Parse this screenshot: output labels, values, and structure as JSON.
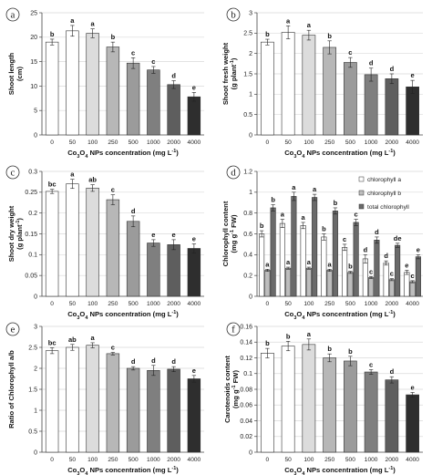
{
  "palette": {
    "bar_fill": [
      "#ffffff",
      "#ffffff",
      "#dcdcdc",
      "#b7b7b7",
      "#9b9b9b",
      "#7f7f7f",
      "#5e5e5e",
      "#2e2e2e"
    ],
    "grid": "#d9d9d9",
    "axis": "#444444",
    "chlorophyll": [
      "#ffffff",
      "#bdbdbd",
      "#6a6a6a"
    ]
  },
  "chart_data": [
    {
      "panel": "a",
      "type": "bar",
      "categories": [
        "0",
        "50",
        "100",
        "250",
        "500",
        "1000",
        "2000",
        "4000"
      ],
      "values": [
        19.0,
        21.3,
        20.8,
        18.0,
        14.7,
        13.3,
        10.3,
        7.8
      ],
      "errors": [
        0.6,
        1.1,
        0.9,
        1.0,
        1.1,
        0.7,
        0.8,
        0.9
      ],
      "sig": [
        "b",
        "a",
        "a",
        "b",
        "c",
        "c",
        "d",
        "e"
      ],
      "ylabel": "Shoot length\n(cm)",
      "xlabel": "Co3O4 NPs concentration (mg L-1)",
      "ylim": [
        0,
        25
      ],
      "yticks": [
        "0",
        "5",
        "10",
        "15",
        "20",
        "25"
      ],
      "ytick_values": [
        0,
        5,
        10,
        15,
        20,
        25
      ]
    },
    {
      "panel": "b",
      "type": "bar",
      "categories": [
        "0",
        "50",
        "100",
        "250",
        "500",
        "1000",
        "2000",
        "4000"
      ],
      "values": [
        2.28,
        2.52,
        2.45,
        2.15,
        1.78,
        1.48,
        1.38,
        1.18
      ],
      "errors": [
        0.07,
        0.16,
        0.12,
        0.16,
        0.12,
        0.16,
        0.12,
        0.16
      ],
      "sig": [
        "b",
        "a",
        "a",
        "b",
        "c",
        "d",
        "d",
        "e"
      ],
      "ylabel": "Shoot fresh weight\n(g plant-1)",
      "xlabel": "Co3O4 NPs concentration (mg L-1)",
      "ylim": [
        0,
        3
      ],
      "yticks": [
        "0",
        "0.5",
        "1",
        "1.5",
        "2",
        "2.5",
        "3"
      ],
      "ytick_values": [
        0,
        0.5,
        1,
        1.5,
        2,
        2.5,
        3
      ]
    },
    {
      "panel": "c",
      "type": "bar",
      "categories": [
        "0",
        "50",
        "100",
        "250",
        "500",
        "1000",
        "2000",
        "4000"
      ],
      "values": [
        0.252,
        0.27,
        0.26,
        0.232,
        0.18,
        0.128,
        0.124,
        0.115
      ],
      "errors": [
        0.005,
        0.011,
        0.008,
        0.012,
        0.013,
        0.008,
        0.012,
        0.011
      ],
      "sig": [
        "bc",
        "a",
        "ab",
        "c",
        "d",
        "e",
        "e",
        "e"
      ],
      "ylabel": "Shoot dry weight\n(g plant-1)",
      "xlabel": "Co3O4 NPs concentration (mg L-1)",
      "ylim": [
        0,
        0.3
      ],
      "yticks": [
        "0",
        "0.05",
        "0.1",
        "0.15",
        "0.2",
        "0.25",
        "0.3"
      ],
      "ytick_values": [
        0,
        0.05,
        0.1,
        0.15,
        0.2,
        0.25,
        0.3
      ]
    },
    {
      "panel": "d",
      "type": "bar",
      "categories": [
        "0",
        "50",
        "100",
        "250",
        "500",
        "1000",
        "2000",
        "4000"
      ],
      "series": [
        {
          "name": "chlorophyll a",
          "values": [
            0.6,
            0.7,
            0.68,
            0.57,
            0.47,
            0.36,
            0.32,
            0.23
          ],
          "errors": [
            0.03,
            0.04,
            0.03,
            0.03,
            0.03,
            0.04,
            0.02,
            0.02
          ],
          "sig": [
            "b",
            "a",
            "a",
            "b",
            "c",
            "d",
            "d",
            "e"
          ]
        },
        {
          "name": "chlorophyll b",
          "values": [
            0.25,
            0.27,
            0.27,
            0.25,
            0.23,
            0.18,
            0.16,
            0.14
          ],
          "errors": [
            0.01,
            0.01,
            0.01,
            0.01,
            0.01,
            0.01,
            0.01,
            0.01
          ],
          "sig": [
            "a",
            "a",
            "a",
            "a",
            "b",
            "c",
            "c",
            "c"
          ]
        },
        {
          "name": "total chlorophyll",
          "values": [
            0.85,
            0.96,
            0.95,
            0.82,
            0.71,
            0.54,
            0.49,
            0.38
          ],
          "errors": [
            0.03,
            0.04,
            0.03,
            0.03,
            0.03,
            0.03,
            0.02,
            0.02
          ],
          "sig": [
            "b",
            "a",
            "a",
            "b",
            "c",
            "d",
            "de",
            "e"
          ]
        }
      ],
      "ylabel": "Chlorophyll content\n(mg g-1 FW)",
      "xlabel": "Co3O4 NPs concentration (mg L-1)",
      "ylim": [
        0,
        1.2
      ],
      "yticks": [
        "0",
        "0.2",
        "0.4",
        "0.6",
        "0.8",
        "1",
        "1.2"
      ],
      "ytick_values": [
        0,
        0.2,
        0.4,
        0.6,
        0.8,
        1.0,
        1.2
      ],
      "legend_position": "top-right"
    },
    {
      "panel": "e",
      "type": "bar",
      "categories": [
        "0",
        "50",
        "100",
        "250",
        "500",
        "1000",
        "2000",
        "4000"
      ],
      "values": [
        2.42,
        2.5,
        2.55,
        2.35,
        2.0,
        1.95,
        1.98,
        1.75
      ],
      "errors": [
        0.07,
        0.07,
        0.06,
        0.03,
        0.04,
        0.12,
        0.06,
        0.08
      ],
      "sig": [
        "bc",
        "ab",
        "a",
        "c",
        "d",
        "d",
        "d",
        "e"
      ],
      "ylabel": "Ratio of Chlorophyll a/b",
      "xlabel": "Co3O4 NPs concentration (mg L-1)",
      "ylim": [
        0,
        3
      ],
      "yticks": [
        "0",
        "0.5",
        "1",
        "1.5",
        "2",
        "2.5",
        "3"
      ],
      "ytick_values": [
        0,
        0.5,
        1,
        1.5,
        2,
        2.5,
        3
      ]
    },
    {
      "panel": "f",
      "type": "bar",
      "categories": [
        "0",
        "50",
        "100",
        "250",
        "500",
        "1000",
        "2000",
        "4000"
      ],
      "values": [
        0.126,
        0.135,
        0.137,
        0.12,
        0.116,
        0.102,
        0.092,
        0.073
      ],
      "errors": [
        0.006,
        0.006,
        0.007,
        0.005,
        0.006,
        0.003,
        0.004,
        0.003
      ],
      "sig": [
        "b",
        "b",
        "a",
        "b",
        "b",
        "c",
        "d",
        "e"
      ],
      "ylabel": "Carotenoids content\n(mg g-1 FW)",
      "xlabel": "Co3O4 NPs concentration (mg L-1)",
      "ylim": [
        0,
        0.16
      ],
      "yticks": [
        "0",
        "0.02",
        "0.04",
        "0.06",
        "0.08",
        "0.1",
        "0.12",
        "0.14",
        "0.16"
      ],
      "ytick_values": [
        0,
        0.02,
        0.04,
        0.06,
        0.08,
        0.1,
        0.12,
        0.14,
        0.16
      ]
    }
  ]
}
